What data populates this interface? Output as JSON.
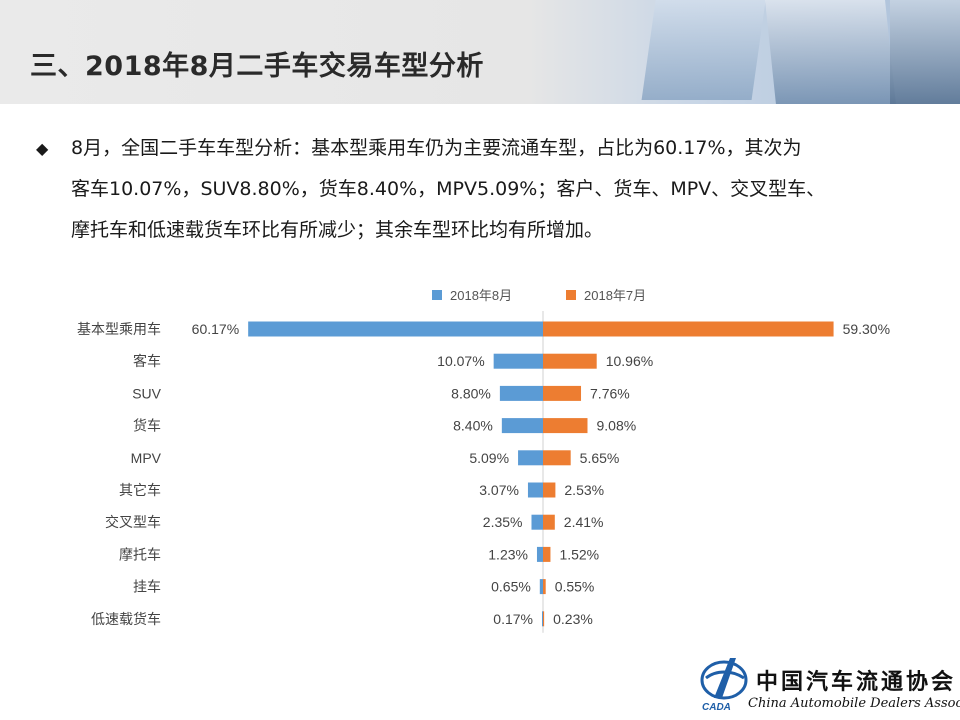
{
  "header": {
    "title": "三、2018年8月二手车交易车型分析"
  },
  "summary": {
    "lines": [
      "8月，全国二手车车型分析：基本型乘用车仍为主要流通车型，占比为60.17%，其次为",
      "客车10.07%，SUV8.80%，货车8.40%，MPV5.09%；客户、货车、MPV、交叉型车、",
      "摩托车和低速载货车环比有所减少；其余车型环比均有所增加。"
    ]
  },
  "logo": {
    "name_cn": "中国汽车流通协会",
    "name_en": "China Automobile Dealers Association",
    "mark_text": "CADA"
  },
  "colors": {
    "aug": "#5b9bd5",
    "jul": "#ed7d31"
  },
  "chart_data": {
    "type": "bar",
    "orientation": "horizontal-diverging",
    "categories": [
      "基本型乘用车",
      "客车",
      "SUV",
      "货车",
      "MPV",
      "其它车",
      "交叉型车",
      "摩托车",
      "挂车",
      "低速载货车"
    ],
    "series": [
      {
        "name": "2018年8月",
        "values": [
          60.17,
          10.07,
          8.8,
          8.4,
          5.09,
          3.07,
          2.35,
          1.23,
          0.65,
          0.17
        ],
        "labels": [
          "60.17%",
          "10.07%",
          "8.80%",
          "8.40%",
          "5.09%",
          "3.07%",
          "2.35%",
          "1.23%",
          "0.65%",
          "0.17%"
        ]
      },
      {
        "name": "2018年7月",
        "values": [
          59.3,
          10.96,
          7.76,
          9.08,
          5.65,
          2.53,
          2.41,
          1.52,
          0.55,
          0.23
        ],
        "labels": [
          "59.30%",
          "10.96%",
          "7.76%",
          "9.08%",
          "5.65%",
          "2.53%",
          "2.41%",
          "1.52%",
          "0.55%",
          "0.23%"
        ]
      }
    ],
    "unit": "%",
    "legend_position": "top"
  }
}
